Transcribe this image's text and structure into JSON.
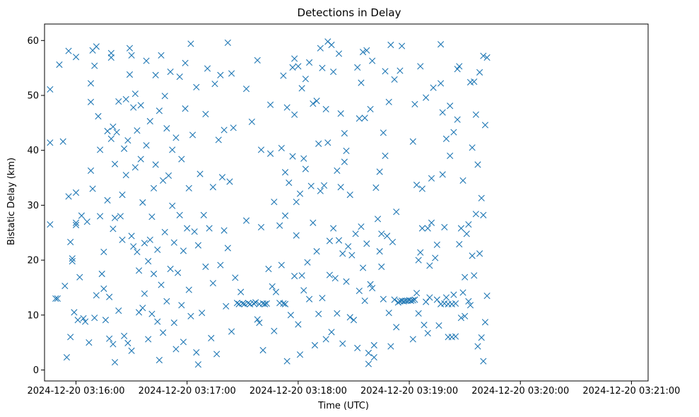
{
  "chart_data": {
    "type": "scatter",
    "title": "Detections in Delay",
    "xlabel": "Time (UTC)",
    "ylabel": "Bistatic Delay (km)",
    "marker": "x",
    "series_color": "#1f77b4",
    "xlim_seconds": [
      -17,
      309
    ],
    "ylim": [
      -2,
      63
    ],
    "x_origin": "2024-12-20 03:16:00",
    "x_ticks": [
      {
        "seconds": 0,
        "label": "2024-12-20 03:16:00"
      },
      {
        "seconds": 60,
        "label": "2024-12-20 03:17:00"
      },
      {
        "seconds": 120,
        "label": "2024-12-20 03:18:00"
      },
      {
        "seconds": 180,
        "label": "2024-12-20 03:19:00"
      },
      {
        "seconds": 240,
        "label": "2024-12-20 03:20:00"
      },
      {
        "seconds": 300,
        "label": "2024-12-20 03:21:00"
      }
    ],
    "y_ticks": [
      {
        "value": 0,
        "label": "0"
      },
      {
        "value": 10,
        "label": "10"
      },
      {
        "value": 20,
        "label": "20"
      },
      {
        "value": 30,
        "label": "30"
      },
      {
        "value": 40,
        "label": "40"
      },
      {
        "value": 50,
        "label": "50"
      },
      {
        "value": 60,
        "label": "60"
      }
    ],
    "points": [
      [
        -14,
        51.1
      ],
      [
        -14,
        41.4
      ],
      [
        -14,
        26.5
      ],
      [
        -11,
        13
      ],
      [
        -10,
        13
      ],
      [
        -9,
        55.6
      ],
      [
        -7,
        41.6
      ],
      [
        -6,
        15.3
      ],
      [
        -5,
        2.3
      ],
      [
        -4,
        58.1
      ],
      [
        -4,
        31.6
      ],
      [
        -3,
        23.3
      ],
      [
        -3,
        6
      ],
      [
        -2,
        19.8
      ],
      [
        -2,
        20.3
      ],
      [
        -1,
        10.5
      ],
      [
        0,
        57
      ],
      [
        0,
        32.3
      ],
      [
        0,
        26.8
      ],
      [
        0,
        26.4
      ],
      [
        1,
        9.1
      ],
      [
        2,
        16.9
      ],
      [
        3,
        28.1
      ],
      [
        4,
        9.4
      ],
      [
        5,
        8.8
      ],
      [
        6,
        27
      ],
      [
        7,
        5
      ],
      [
        8,
        36.3
      ],
      [
        8,
        48.8
      ],
      [
        8,
        52.2
      ],
      [
        9,
        33
      ],
      [
        9,
        58.2
      ],
      [
        10,
        55.4
      ],
      [
        10,
        9.5
      ],
      [
        11,
        58.9
      ],
      [
        11,
        13.6
      ],
      [
        12,
        46.2
      ],
      [
        13,
        40.1
      ],
      [
        13,
        28
      ],
      [
        14,
        17.5
      ],
      [
        15,
        21.5
      ],
      [
        15,
        14.8
      ],
      [
        16,
        9.1
      ],
      [
        17,
        30.9
      ],
      [
        17,
        43.5
      ],
      [
        18,
        5.7
      ],
      [
        18,
        13.3
      ],
      [
        19,
        42.1
      ],
      [
        19,
        57.7
      ],
      [
        19,
        56.9
      ],
      [
        20,
        44.3
      ],
      [
        20,
        4.7
      ],
      [
        20,
        25.7
      ],
      [
        21,
        1.4
      ],
      [
        21,
        27.7
      ],
      [
        21,
        37.5
      ],
      [
        22,
        43.3
      ],
      [
        23,
        48.9
      ],
      [
        23,
        10.8
      ],
      [
        24,
        28
      ],
      [
        25,
        31.9
      ],
      [
        25,
        23.7
      ],
      [
        26,
        40.3
      ],
      [
        26,
        6.2
      ],
      [
        27,
        49.3
      ],
      [
        27,
        35.5
      ],
      [
        28,
        41.8
      ],
      [
        28,
        4.9
      ],
      [
        29,
        58.6
      ],
      [
        29,
        53.8
      ],
      [
        30,
        57.3
      ],
      [
        30,
        24.4
      ],
      [
        30,
        3.5
      ],
      [
        31,
        22.5
      ],
      [
        31,
        47.8
      ],
      [
        32,
        50.3
      ],
      [
        32,
        36.9
      ],
      [
        33,
        21.5
      ],
      [
        33,
        43.6
      ],
      [
        34,
        10.5
      ],
      [
        34,
        18.1
      ],
      [
        35,
        48.2
      ],
      [
        35,
        38.4
      ],
      [
        36,
        30.5
      ],
      [
        36,
        11.3
      ],
      [
        37,
        23.1
      ],
      [
        37,
        13.9
      ],
      [
        38,
        56.3
      ],
      [
        38,
        40.9
      ],
      [
        39,
        5.6
      ],
      [
        39,
        19.8
      ],
      [
        40,
        23.7
      ],
      [
        40,
        45.3
      ],
      [
        41,
        27.9
      ],
      [
        41,
        10.2
      ],
      [
        42,
        33.1
      ],
      [
        42,
        17.5
      ],
      [
        43,
        37.4
      ],
      [
        43,
        53.7
      ],
      [
        44,
        8.8
      ],
      [
        44,
        21.9
      ],
      [
        45,
        47.2
      ],
      [
        45,
        1.8
      ],
      [
        46,
        15.5
      ],
      [
        46,
        57.3
      ],
      [
        47,
        34.5
      ],
      [
        47,
        6.8
      ],
      [
        48,
        49.9
      ],
      [
        48,
        25.1
      ],
      [
        49,
        44
      ],
      [
        49,
        12.5
      ],
      [
        50,
        35.4
      ],
      [
        51,
        54.3
      ],
      [
        51,
        18.4
      ],
      [
        52,
        40.1
      ],
      [
        52,
        29.9
      ],
      [
        53,
        8.6
      ],
      [
        53,
        23.2
      ],
      [
        54,
        42.3
      ],
      [
        54,
        3.8
      ],
      [
        55,
        17.7
      ],
      [
        56,
        28.2
      ],
      [
        56,
        53.4
      ],
      [
        57,
        11.8
      ],
      [
        57,
        38.4
      ],
      [
        58,
        5.1
      ],
      [
        58,
        21.7
      ],
      [
        59,
        55.9
      ],
      [
        59,
        47.6
      ],
      [
        60,
        25.8
      ],
      [
        61,
        33.1
      ],
      [
        61,
        14.6
      ],
      [
        62,
        59.4
      ],
      [
        62,
        9.8
      ],
      [
        63,
        42.8
      ],
      [
        64,
        25.2
      ],
      [
        65,
        51.5
      ],
      [
        65,
        3.2
      ],
      [
        66,
        22.7
      ],
      [
        66,
        1
      ],
      [
        67,
        35.7
      ],
      [
        68,
        10.4
      ],
      [
        69,
        28.2
      ],
      [
        70,
        46.6
      ],
      [
        70,
        18.8
      ],
      [
        71,
        54.9
      ],
      [
        72,
        25.8
      ],
      [
        73,
        5.8
      ],
      [
        74,
        15.8
      ],
      [
        74,
        33.3
      ],
      [
        75,
        52.1
      ],
      [
        76,
        2.9
      ],
      [
        77,
        41.9
      ],
      [
        78,
        19.1
      ],
      [
        78,
        53.7
      ],
      [
        79,
        35.1
      ],
      [
        80,
        25.4
      ],
      [
        80,
        43.7
      ],
      [
        81,
        11.6
      ],
      [
        82,
        59.6
      ],
      [
        82,
        22.2
      ],
      [
        83,
        34.3
      ],
      [
        84,
        54
      ],
      [
        84,
        7
      ],
      [
        85,
        44.1
      ],
      [
        86,
        16.8
      ],
      [
        87,
        12.2
      ],
      [
        88,
        12
      ],
      [
        89,
        14.2
      ],
      [
        90,
        12.1
      ],
      [
        91,
        12
      ],
      [
        92,
        51.2
      ],
      [
        92,
        27.2
      ],
      [
        93,
        12.2
      ],
      [
        94,
        12
      ],
      [
        95,
        45.2
      ],
      [
        96,
        12.1
      ],
      [
        97,
        12.3
      ],
      [
        98,
        9.2
      ],
      [
        98,
        56.4
      ],
      [
        99,
        12
      ],
      [
        99,
        8.6
      ],
      [
        100,
        26
      ],
      [
        100,
        40.1
      ],
      [
        101,
        12.1
      ],
      [
        101,
        3.6
      ],
      [
        102,
        12
      ],
      [
        103,
        12.1
      ],
      [
        104,
        18.4
      ],
      [
        105,
        48.3
      ],
      [
        105,
        39.4
      ],
      [
        106,
        15.2
      ],
      [
        107,
        7.1
      ],
      [
        107,
        30.6
      ],
      [
        108,
        14.2
      ],
      [
        110,
        12.2
      ],
      [
        110,
        26.3
      ],
      [
        111,
        40.4
      ],
      [
        111,
        19.1
      ],
      [
        112,
        12.1
      ],
      [
        112,
        53.6
      ],
      [
        113,
        12
      ],
      [
        113,
        36
      ],
      [
        113,
        28.1
      ],
      [
        114,
        47.8
      ],
      [
        114,
        1.6
      ],
      [
        115,
        34.1
      ],
      [
        116,
        10
      ],
      [
        117,
        38.9
      ],
      [
        117,
        55.1
      ],
      [
        118,
        46.5
      ],
      [
        118,
        17.1
      ],
      [
        118,
        56.7
      ],
      [
        119,
        24.5
      ],
      [
        119,
        30.6
      ],
      [
        120,
        55.3
      ],
      [
        120,
        8.3
      ],
      [
        121,
        32.1
      ],
      [
        121,
        2.8
      ],
      [
        122,
        51.3
      ],
      [
        122,
        17.2
      ],
      [
        123,
        38.5
      ],
      [
        123,
        14.5
      ],
      [
        124,
        53
      ],
      [
        124,
        36.6
      ],
      [
        125,
        19.6
      ],
      [
        126,
        12.9
      ],
      [
        126,
        56
      ],
      [
        127,
        33.5
      ],
      [
        128,
        48.5
      ],
      [
        128,
        26.8
      ],
      [
        129,
        4.5
      ],
      [
        130,
        49
      ],
      [
        130,
        21.6
      ],
      [
        131,
        41.2
      ],
      [
        131,
        10.2
      ],
      [
        132,
        58.6
      ],
      [
        132,
        32.6
      ],
      [
        133,
        55
      ],
      [
        133,
        13.1
      ],
      [
        134,
        33.6
      ],
      [
        135,
        47.5
      ],
      [
        135,
        5.6
      ],
      [
        136,
        59.8
      ],
      [
        136,
        41.4
      ],
      [
        137,
        23.5
      ],
      [
        137,
        17.3
      ],
      [
        138,
        59.2
      ],
      [
        138,
        6.9
      ],
      [
        139,
        54.3
      ],
      [
        139,
        25.8
      ],
      [
        140,
        16.7
      ],
      [
        141,
        36.3
      ],
      [
        141,
        10.3
      ],
      [
        142,
        57.6
      ],
      [
        142,
        23.6
      ],
      [
        143,
        46.7
      ],
      [
        143,
        33.3
      ],
      [
        144,
        21.2
      ],
      [
        144,
        4.8
      ],
      [
        145,
        43.1
      ],
      [
        145,
        37.9
      ],
      [
        146,
        39.9
      ],
      [
        146,
        16.1
      ],
      [
        147,
        22.5
      ],
      [
        148,
        31.9
      ],
      [
        148,
        9.6
      ],
      [
        149,
        20.9
      ],
      [
        150,
        9.1
      ],
      [
        151,
        24.8
      ],
      [
        152,
        55.1
      ],
      [
        152,
        4
      ],
      [
        153,
        45.8
      ],
      [
        153,
        14.4
      ],
      [
        154,
        52.3
      ],
      [
        154,
        26.1
      ],
      [
        155,
        57.9
      ],
      [
        155,
        18.6
      ],
      [
        156,
        45.9
      ],
      [
        156,
        12.6
      ],
      [
        157,
        58.2
      ],
      [
        157,
        23
      ],
      [
        158,
        3.1
      ],
      [
        158,
        1.1
      ],
      [
        159,
        15.6
      ],
      [
        159,
        47.5
      ],
      [
        160,
        56.3
      ],
      [
        160,
        14.9
      ],
      [
        161,
        2.3
      ],
      [
        161,
        4.5
      ],
      [
        162,
        33.2
      ],
      [
        163,
        27.5
      ],
      [
        164,
        21.6
      ],
      [
        164,
        36.1
      ],
      [
        165,
        24.8
      ],
      [
        165,
        18.8
      ],
      [
        166,
        12.9
      ],
      [
        166,
        43.2
      ],
      [
        167,
        39
      ],
      [
        167,
        54.4
      ],
      [
        168,
        24.4
      ],
      [
        169,
        48.8
      ],
      [
        169,
        10.4
      ],
      [
        170,
        4.3
      ],
      [
        170,
        59.2
      ],
      [
        171,
        23.3
      ],
      [
        172,
        12.8
      ],
      [
        172,
        52.9
      ],
      [
        173,
        28.8
      ],
      [
        173,
        7.8
      ],
      [
        174,
        12.3
      ],
      [
        175,
        54.5
      ],
      [
        175,
        12.5
      ],
      [
        176,
        59
      ],
      [
        176,
        12.6
      ],
      [
        177,
        12.5
      ],
      [
        178,
        12.6
      ],
      [
        179,
        12.6
      ],
      [
        180,
        12.7
      ],
      [
        181,
        12.6
      ],
      [
        182,
        12.7
      ],
      [
        182,
        41.6
      ],
      [
        182,
        5.6
      ],
      [
        183,
        12.8
      ],
      [
        183,
        48.4
      ],
      [
        184,
        33.7
      ],
      [
        184,
        14
      ],
      [
        185,
        20
      ],
      [
        185,
        10.3
      ],
      [
        186,
        55.3
      ],
      [
        186,
        21.4
      ],
      [
        187,
        33
      ],
      [
        187,
        25.8
      ],
      [
        188,
        8.2
      ],
      [
        189,
        12.4
      ],
      [
        189,
        49.6
      ],
      [
        190,
        25.8
      ],
      [
        190,
        6.7
      ],
      [
        191,
        19
      ],
      [
        191,
        13.2
      ],
      [
        192,
        26.8
      ],
      [
        192,
        34.9
      ],
      [
        193,
        51.4
      ],
      [
        194,
        20.4
      ],
      [
        195,
        12.8
      ],
      [
        195,
        22.8
      ],
      [
        196,
        8.1
      ],
      [
        197,
        12
      ],
      [
        197,
        52.2
      ],
      [
        197,
        59.3
      ],
      [
        198,
        46.9
      ],
      [
        198,
        35.6
      ],
      [
        199,
        26
      ],
      [
        199,
        12.1
      ],
      [
        200,
        42.1
      ],
      [
        200,
        13.2
      ],
      [
        201,
        12
      ],
      [
        201,
        6
      ],
      [
        202,
        48.1
      ],
      [
        202,
        39
      ],
      [
        203,
        12
      ],
      [
        203,
        6
      ],
      [
        204,
        43.3
      ],
      [
        204,
        13.7
      ],
      [
        205,
        12.1
      ],
      [
        205,
        6.1
      ],
      [
        206,
        54.8
      ],
      [
        206,
        45.6
      ],
      [
        207,
        55.3
      ],
      [
        207,
        22.9
      ],
      [
        208,
        25.8
      ],
      [
        208,
        9.5
      ],
      [
        209,
        34.5
      ],
      [
        209,
        14.1
      ],
      [
        210,
        16.9
      ],
      [
        210,
        9.8
      ],
      [
        211,
        24.8
      ],
      [
        212,
        12.5
      ],
      [
        212,
        26.5
      ],
      [
        213,
        52.4
      ],
      [
        213,
        11.8
      ],
      [
        214,
        40.5
      ],
      [
        214,
        20.8
      ],
      [
        215,
        52.5
      ],
      [
        215,
        17.2
      ],
      [
        216,
        46.5
      ],
      [
        216,
        28.4
      ],
      [
        217,
        37.4
      ],
      [
        217,
        4.3
      ],
      [
        218,
        54.2
      ],
      [
        218,
        21.2
      ],
      [
        219,
        31.3
      ],
      [
        219,
        5.9
      ],
      [
        220,
        57.2
      ],
      [
        220,
        28.2
      ],
      [
        220,
        1.6
      ],
      [
        221,
        44.6
      ],
      [
        221,
        8.7
      ],
      [
        222,
        13.5
      ],
      [
        222,
        56.9
      ]
    ]
  }
}
